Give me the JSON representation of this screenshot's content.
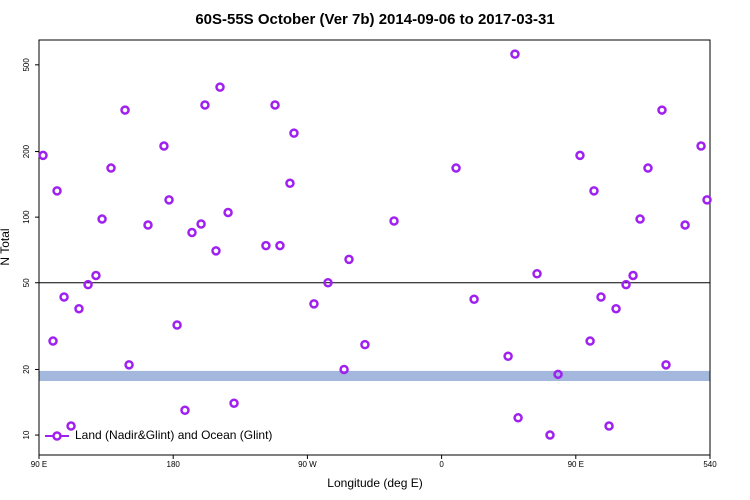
{
  "chart_data": {
    "type": "scatter",
    "title": "60S-55S October (Ver 7b)   2014-09-06 to 2017-03-31",
    "xlabel": "Longitude (deg E)",
    "ylabel": "N Total",
    "xlim": [
      90,
      540
    ],
    "xticks": [
      {
        "value": 90,
        "label": "90 E"
      },
      180,
      {
        "value": 270,
        "label": "90 W"
      },
      {
        "value": 360,
        "label": "0"
      },
      {
        "value": 450,
        "label": "90 E"
      },
      540
    ],
    "ylim": [
      8.1,
      650
    ],
    "yscale": "log",
    "yticks": [
      10,
      20,
      50,
      100,
      200,
      500
    ],
    "hline": 50,
    "hline_color": "#000000",
    "band": [
      17.7,
      19.7
    ],
    "band_color": "#a3b8dc",
    "legend": "bottom-left",
    "series": [
      {
        "name": "Land (Nadir&Glint) and Ocean (Glint)",
        "color": "#a020f0",
        "x": [
          92.7,
          99.4,
          102.1,
          106.8,
          111.5,
          116.8,
          122.9,
          128.2,
          132.3,
          138.3,
          147.7,
          150.4,
          163.1,
          173.8,
          177.2,
          182.6,
          187.9,
          192.6,
          198.7,
          201.3,
          208.7,
          211.4,
          216.8,
          220.8,
          242.2,
          248.3,
          251.6,
          258.3,
          261.0,
          274.4,
          283.8,
          294.6,
          297.9,
          308.6,
          328.1,
          369.7,
          381.8,
          404.6,
          409.2,
          411.3,
          424.0,
          432.7,
          438.1,
          452.8,
          459.6,
          462.2,
          466.9,
          472.3,
          477.0,
          483.7,
          488.4,
          493.1,
          498.4,
          507.8,
          510.5,
          523.3,
          534.0,
          538.0
        ],
        "values": [
          192,
          27,
          132,
          43,
          11,
          38,
          49,
          54,
          98,
          168,
          310,
          21,
          92,
          212,
          120,
          32,
          13,
          85,
          93,
          327,
          70,
          395,
          105,
          14,
          74,
          327,
          74,
          143,
          243,
          40,
          50,
          20,
          64,
          26,
          96,
          168,
          42,
          23,
          560,
          12,
          55,
          10,
          19,
          192,
          27,
          132,
          43,
          11,
          38,
          49,
          54,
          98,
          168,
          310,
          21,
          92,
          212,
          120
        ]
      }
    ]
  }
}
